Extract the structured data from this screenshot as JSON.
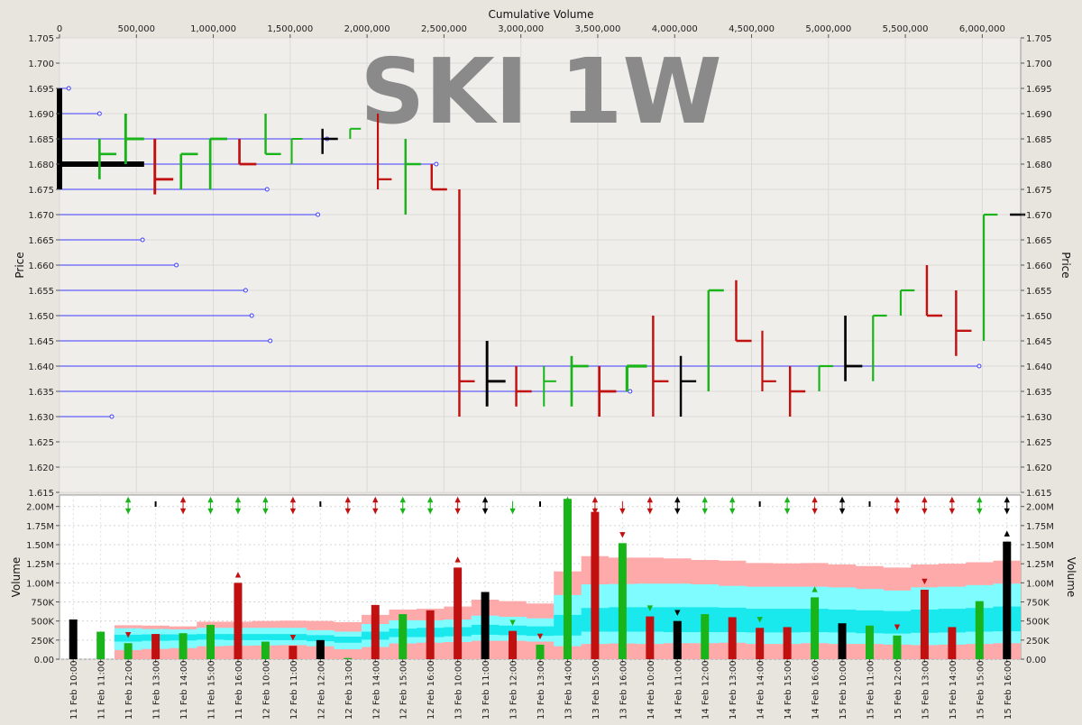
{
  "chart_data": {
    "type": "bar",
    "title": "SKI 1W",
    "price_chart": {
      "xlabel": "Cumulative Volume",
      "ylabel": "Price",
      "xlim": [
        0,
        6250000
      ],
      "ylim": [
        1.615,
        1.705
      ],
      "x_ticks": [
        0,
        500000,
        1000000,
        1500000,
        2000000,
        2500000,
        3000000,
        3500000,
        4000000,
        4500000,
        5000000,
        5500000,
        6000000
      ],
      "x_tick_labels": [
        "0",
        "500,000",
        "1,000,000",
        "1,500,000",
        "2,000,000",
        "2,500,000",
        "3,000,000",
        "3,500,000",
        "4,000,000",
        "4,500,000",
        "5,000,000",
        "5,500,000",
        "6,000,000"
      ],
      "y_ticks": [
        "1.615",
        "1.620",
        "1.625",
        "1.630",
        "1.635",
        "1.640",
        "1.645",
        "1.650",
        "1.655",
        "1.660",
        "1.665",
        "1.670",
        "1.675",
        "1.680",
        "1.685",
        "1.690",
        "1.695",
        "1.700",
        "1.705"
      ],
      "support_lines": [
        {
          "price": 1.695,
          "end": 60000
        },
        {
          "price": 1.69,
          "end": 260000
        },
        {
          "price": 1.685,
          "end": 1740000
        },
        {
          "price": 1.68,
          "end": 2450000
        },
        {
          "price": 1.675,
          "end": 1350000
        },
        {
          "price": 1.67,
          "end": 1680000
        },
        {
          "price": 1.665,
          "end": 540000
        },
        {
          "price": 1.66,
          "end": 760000
        },
        {
          "price": 1.655,
          "end": 1210000
        },
        {
          "price": 1.65,
          "end": 1250000
        },
        {
          "price": 1.645,
          "end": 1370000
        },
        {
          "price": 1.64,
          "end": 5980000
        },
        {
          "price": 1.635,
          "end": 3710000
        },
        {
          "price": 1.63,
          "end": 340000
        }
      ],
      "bars": [
        {
          "x0": 0,
          "x1": 550000,
          "open": 1.68,
          "high": 1.695,
          "low": 1.675,
          "close": 1.68,
          "color": "black"
        },
        {
          "x0": 260000,
          "x1": 370000,
          "open": 1.677,
          "high": 1.685,
          "low": 1.677,
          "close": 1.682,
          "color": "green"
        },
        {
          "x0": 430000,
          "x1": 550000,
          "open": 1.68,
          "high": 1.69,
          "low": 1.68,
          "close": 1.685,
          "color": "green"
        },
        {
          "x0": 620000,
          "x1": 740000,
          "open": 1.685,
          "high": 1.685,
          "low": 1.674,
          "close": 1.677,
          "color": "red"
        },
        {
          "x0": 790000,
          "x1": 900000,
          "open": 1.675,
          "high": 1.682,
          "low": 1.675,
          "close": 1.682,
          "color": "green"
        },
        {
          "x0": 980000,
          "x1": 1090000,
          "open": 1.675,
          "high": 1.685,
          "low": 1.675,
          "close": 1.685,
          "color": "green"
        },
        {
          "x0": 1170000,
          "x1": 1280000,
          "open": 1.685,
          "high": 1.685,
          "low": 1.68,
          "close": 1.68,
          "color": "red"
        },
        {
          "x0": 1340000,
          "x1": 1440000,
          "open": 1.682,
          "high": 1.69,
          "low": 1.682,
          "close": 1.682,
          "color": "green"
        },
        {
          "x0": 1510000,
          "x1": 1580000,
          "open": 1.685,
          "high": 1.685,
          "low": 1.68,
          "close": 1.685,
          "color": "green"
        },
        {
          "x0": 1710000,
          "x1": 1810000,
          "open": 1.685,
          "high": 1.687,
          "low": 1.682,
          "close": 1.685,
          "color": "black"
        },
        {
          "x0": 1890000,
          "x1": 1960000,
          "open": 1.686,
          "high": 1.687,
          "low": 1.685,
          "close": 1.687,
          "color": "green"
        },
        {
          "x0": 2070000,
          "x1": 2160000,
          "open": 1.68,
          "high": 1.69,
          "low": 1.675,
          "close": 1.677,
          "color": "red"
        },
        {
          "x0": 2250000,
          "x1": 2350000,
          "open": 1.68,
          "high": 1.685,
          "low": 1.67,
          "close": 1.68,
          "color": "green"
        },
        {
          "x0": 2420000,
          "x1": 2520000,
          "open": 1.68,
          "high": 1.68,
          "low": 1.675,
          "close": 1.675,
          "color": "red"
        },
        {
          "x0": 2600000,
          "x1": 2700000,
          "open": 1.675,
          "high": 1.675,
          "low": 1.63,
          "close": 1.637,
          "color": "red"
        },
        {
          "x0": 2780000,
          "x1": 2900000,
          "open": 1.637,
          "high": 1.645,
          "low": 1.632,
          "close": 1.637,
          "color": "black"
        },
        {
          "x0": 2970000,
          "x1": 3070000,
          "open": 1.635,
          "high": 1.64,
          "low": 1.632,
          "close": 1.635,
          "color": "red"
        },
        {
          "x0": 3150000,
          "x1": 3230000,
          "open": 1.637,
          "high": 1.64,
          "low": 1.632,
          "close": 1.637,
          "color": "green"
        },
        {
          "x0": 3330000,
          "x1": 3440000,
          "open": 1.632,
          "high": 1.642,
          "low": 1.632,
          "close": 1.64,
          "color": "green"
        },
        {
          "x0": 3510000,
          "x1": 3620000,
          "open": 1.64,
          "high": 1.64,
          "low": 1.63,
          "close": 1.635,
          "color": "red"
        },
        {
          "x0": 3690000,
          "x1": 3820000,
          "open": 1.635,
          "high": 1.64,
          "low": 1.635,
          "close": 1.64,
          "color": "green"
        },
        {
          "x0": 3860000,
          "x1": 3960000,
          "open": 1.637,
          "high": 1.65,
          "low": 1.63,
          "close": 1.637,
          "color": "red"
        },
        {
          "x0": 4040000,
          "x1": 4140000,
          "open": 1.637,
          "high": 1.642,
          "low": 1.63,
          "close": 1.637,
          "color": "black"
        },
        {
          "x0": 4220000,
          "x1": 4320000,
          "open": 1.635,
          "high": 1.655,
          "low": 1.635,
          "close": 1.655,
          "color": "green"
        },
        {
          "x0": 4400000,
          "x1": 4500000,
          "open": 1.657,
          "high": 1.657,
          "low": 1.645,
          "close": 1.645,
          "color": "red"
        },
        {
          "x0": 4570000,
          "x1": 4660000,
          "open": 1.64,
          "high": 1.647,
          "low": 1.635,
          "close": 1.637,
          "color": "red"
        },
        {
          "x0": 4750000,
          "x1": 4850000,
          "open": 1.64,
          "high": 1.64,
          "low": 1.63,
          "close": 1.635,
          "color": "red"
        },
        {
          "x0": 4940000,
          "x1": 5030000,
          "open": 1.635,
          "high": 1.64,
          "low": 1.635,
          "close": 1.64,
          "color": "green"
        },
        {
          "x0": 5110000,
          "x1": 5220000,
          "open": 1.64,
          "high": 1.65,
          "low": 1.637,
          "close": 1.64,
          "color": "black"
        },
        {
          "x0": 5290000,
          "x1": 5380000,
          "open": 1.637,
          "high": 1.65,
          "low": 1.637,
          "close": 1.65,
          "color": "green"
        },
        {
          "x0": 5470000,
          "x1": 5560000,
          "open": 1.65,
          "high": 1.655,
          "low": 1.65,
          "close": 1.655,
          "color": "green"
        },
        {
          "x0": 5640000,
          "x1": 5740000,
          "open": 1.66,
          "high": 1.66,
          "low": 1.65,
          "close": 1.65,
          "color": "red"
        },
        {
          "x0": 5830000,
          "x1": 5930000,
          "open": 1.647,
          "high": 1.655,
          "low": 1.642,
          "close": 1.647,
          "color": "red"
        },
        {
          "x0": 6010000,
          "x1": 6100000,
          "open": 1.645,
          "high": 1.67,
          "low": 1.645,
          "close": 1.67,
          "color": "green"
        },
        {
          "x0": 6180000,
          "x1": 6280000,
          "open": 1.67,
          "high": 1.67,
          "low": 1.67,
          "close": 1.67,
          "color": "black"
        }
      ]
    },
    "volume_chart": {
      "ylabel": "Volume",
      "ylim": [
        0,
        2150000
      ],
      "y_ticks": [
        0,
        250000,
        500000,
        750000,
        1000000,
        1250000,
        1500000,
        1750000,
        2000000
      ],
      "y_tick_labels": [
        "0.00",
        "250K",
        "500K",
        "750K",
        "1.00M",
        "1.25M",
        "1.50M",
        "1.75M",
        "2.00M"
      ],
      "categories": [
        "11 Feb 10:00",
        "11 Feb 11:00",
        "11 Feb 12:00",
        "11 Feb 13:00",
        "11 Feb 14:00",
        "11 Feb 15:00",
        "11 Feb 16:00",
        "12 Feb 10:00",
        "12 Feb 11:00",
        "12 Feb 12:00",
        "12 Feb 13:00",
        "12 Feb 14:00",
        "12 Feb 15:00",
        "12 Feb 16:00",
        "13 Feb 10:00",
        "13 Feb 11:00",
        "13 Feb 12:00",
        "13 Feb 13:00",
        "13 Feb 14:00",
        "13 Feb 15:00",
        "13 Feb 16:00",
        "14 Feb 10:00",
        "14 Feb 11:00",
        "14 Feb 12:00",
        "14 Feb 13:00",
        "14 Feb 14:00",
        "14 Feb 15:00",
        "14 Feb 16:00",
        "15 Feb 10:00",
        "15 Feb 11:00",
        "15 Feb 12:00",
        "15 Feb 13:00",
        "15 Feb 14:00",
        "15 Feb 15:00",
        "15 Feb 16:00"
      ],
      "values": [
        520000,
        360000,
        210000,
        330000,
        340000,
        450000,
        1000000,
        230000,
        175000,
        250000,
        15000,
        710000,
        590000,
        640000,
        1200000,
        880000,
        370000,
        190000,
        2100000,
        1930000,
        1520000,
        560000,
        500000,
        590000,
        550000,
        410000,
        420000,
        810000,
        470000,
        440000,
        310000,
        910000,
        420000,
        760000,
        1540000
      ],
      "colors": [
        "black",
        "green",
        "green",
        "red",
        "green",
        "green",
        "red",
        "green",
        "red",
        "black",
        "green",
        "red",
        "green",
        "red",
        "red",
        "black",
        "red",
        "green",
        "green",
        "red",
        "green",
        "red",
        "black",
        "green",
        "red",
        "red",
        "red",
        "green",
        "black",
        "green",
        "green",
        "red",
        "red",
        "green",
        "black"
      ],
      "top_markers": [
        "",
        "",
        "both-green",
        "bar-black",
        "both-red",
        "both-green",
        "both-green",
        "both-green",
        "both-red",
        "bar-black",
        "both-red",
        "both-red",
        "both-green",
        "both-green",
        "both-red",
        "both-black",
        "down-green",
        "bar-black",
        "both-green",
        "both-red",
        "down-red",
        "both-red",
        "both-black",
        "both-green",
        "both-green",
        "bar-black",
        "both-green",
        "both-red",
        "both-black",
        "bar-black",
        "both-red",
        "both-red",
        "both-red",
        "both-green",
        "both-black"
      ],
      "bar_markers": [
        "",
        "",
        "down-red",
        "",
        "",
        "",
        "up-red",
        "",
        "down-red",
        "",
        "",
        "",
        "",
        "",
        "up-red",
        "",
        "down-green",
        "down-red",
        "",
        "",
        "down-red",
        "down-green",
        "down-black",
        "",
        "",
        "down-green",
        "",
        "up-green",
        "",
        "",
        "down-red",
        "down-red",
        "",
        "",
        "up-black"
      ],
      "band_outer_low": [
        530000,
        530000,
        0,
        0,
        0,
        0,
        0,
        0,
        0,
        0,
        0,
        0,
        0,
        0,
        0,
        0,
        0,
        0,
        0,
        0,
        0,
        0,
        0,
        0,
        0,
        0,
        0,
        0,
        0,
        0,
        0,
        0,
        0,
        0,
        0
      ],
      "band_outer_high": [
        530000,
        530000,
        445000,
        440000,
        430000,
        490000,
        490000,
        500000,
        505000,
        500000,
        485000,
        580000,
        650000,
        660000,
        690000,
        780000,
        760000,
        730000,
        1150000,
        1350000,
        1330000,
        1330000,
        1320000,
        1300000,
        1290000,
        1260000,
        1255000,
        1260000,
        1240000,
        1220000,
        1200000,
        1240000,
        1250000,
        1270000,
        1290000
      ],
      "band_mid_low": [
        0,
        0,
        120000,
        135000,
        145000,
        170000,
        175000,
        180000,
        185000,
        170000,
        130000,
        160000,
        205000,
        215000,
        225000,
        240000,
        240000,
        230000,
        170000,
        200000,
        205000,
        200000,
        210000,
        210000,
        215000,
        200000,
        200000,
        210000,
        200000,
        200000,
        190000,
        185000,
        190000,
        200000,
        210000
      ],
      "band_mid_high": [
        0,
        0,
        405000,
        395000,
        390000,
        410000,
        410000,
        410000,
        410000,
        380000,
        360000,
        460000,
        510000,
        510000,
        520000,
        570000,
        555000,
        535000,
        840000,
        980000,
        985000,
        990000,
        990000,
        980000,
        960000,
        950000,
        950000,
        950000,
        940000,
        920000,
        900000,
        940000,
        950000,
        970000,
        990000
      ],
      "band_inner_low": [
        0,
        0,
        230000,
        240000,
        245000,
        255000,
        250000,
        250000,
        250000,
        235000,
        215000,
        255000,
        290000,
        290000,
        300000,
        320000,
        315000,
        305000,
        310000,
        360000,
        360000,
        360000,
        355000,
        355000,
        355000,
        350000,
        350000,
        355000,
        350000,
        340000,
        335000,
        345000,
        350000,
        360000,
        365000
      ],
      "band_inner_high": [
        0,
        0,
        320000,
        325000,
        325000,
        330000,
        330000,
        330000,
        330000,
        315000,
        295000,
        360000,
        400000,
        410000,
        420000,
        450000,
        440000,
        430000,
        580000,
        670000,
        680000,
        680000,
        680000,
        680000,
        675000,
        660000,
        660000,
        660000,
        650000,
        640000,
        630000,
        650000,
        660000,
        670000,
        690000
      ]
    },
    "colors": {
      "up": "#19b419",
      "down": "#c01010",
      "neutral": "#000000",
      "support_line": "#3c3cff",
      "band_outer": "#ffaaaa",
      "band_mid": "#7ffcff",
      "band_inner": "#19e8ec",
      "plot_bg": "#f0eeea",
      "volume_bg": "#ffffff",
      "watermark": "#8a8a8a"
    }
  }
}
